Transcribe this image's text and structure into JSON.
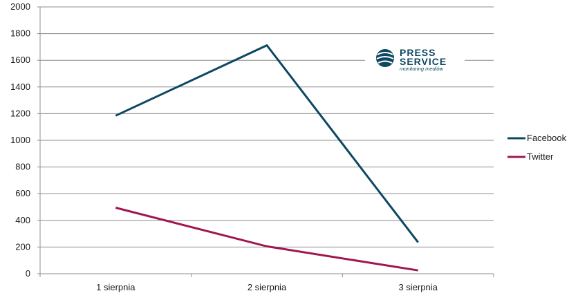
{
  "chart_data": {
    "type": "line",
    "categories": [
      "1 sierpnia",
      "2 sierpnia",
      "3 sierpnia"
    ],
    "series": [
      {
        "name": "Facebook",
        "values": [
          1185,
          1712,
          235
        ],
        "color": "#0d4761"
      },
      {
        "name": "Twitter",
        "values": [
          495,
          205,
          25
        ],
        "color": "#a0174f"
      }
    ],
    "ylim": [
      0,
      2000
    ],
    "yticks": [
      0,
      200,
      400,
      600,
      800,
      1000,
      1200,
      1400,
      1600,
      1800,
      2000
    ],
    "grid": true,
    "legend_position": "right"
  },
  "logo": {
    "line1": "PRESS",
    "line2": "SERVICE",
    "tagline": "monitoring mediów",
    "icon": "globe-icon",
    "color": "#0d4761"
  }
}
